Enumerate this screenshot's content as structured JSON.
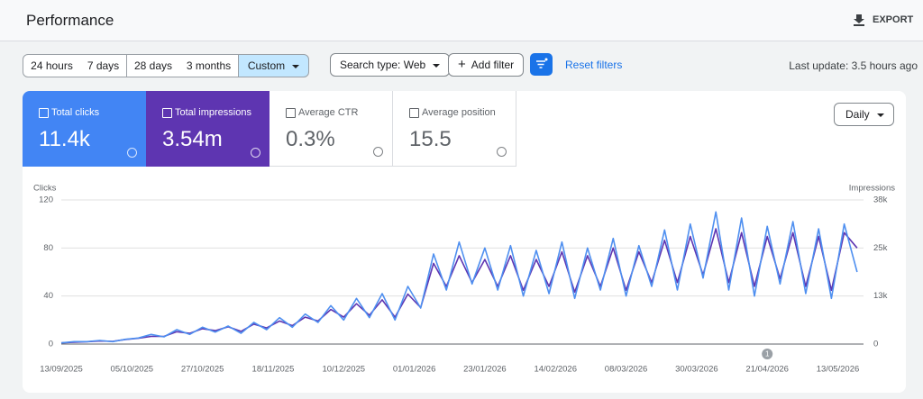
{
  "header": {
    "title": "Performance",
    "export": "EXPORT"
  },
  "filters": {
    "ranges": [
      "24 hours",
      "7 days",
      "28 days",
      "3 months",
      "Custom"
    ],
    "search_type": "Search type: Web",
    "add_filter": "Add filter",
    "reset": "Reset filters",
    "last_update": "Last update: 3.5 hours ago"
  },
  "metrics": [
    {
      "label": "Total clicks",
      "value": "11.4k"
    },
    {
      "label": "Total impressions",
      "value": "3.54m"
    },
    {
      "label": "Average CTR",
      "value": "0.3%"
    },
    {
      "label": "Average position",
      "value": "15.5"
    }
  ],
  "granularity": "Daily",
  "chart_data": {
    "type": "line",
    "y_label": "Clicks",
    "y2_label": "Impressions",
    "x": [
      "13/09/2025",
      "17/09/2025",
      "21/09/2025",
      "25/09/2025",
      "29/09/2025",
      "03/10/2025",
      "07/10/2025",
      "11/10/2025",
      "15/10/2025",
      "19/10/2025",
      "23/10/2025",
      "27/10/2025",
      "31/10/2025",
      "04/11/2025",
      "08/11/2025",
      "12/11/2025",
      "16/11/2025",
      "20/11/2025",
      "24/11/2025",
      "28/11/2025",
      "02/12/2025",
      "06/12/2025",
      "10/12/2025",
      "14/12/2025",
      "18/12/2025",
      "22/12/2025",
      "26/12/2025",
      "30/12/2025",
      "03/01/2026",
      "07/01/2026",
      "11/01/2026",
      "15/01/2026",
      "19/01/2026",
      "23/01/2026",
      "27/01/2026",
      "31/01/2026",
      "04/02/2026",
      "08/02/2026",
      "12/02/2026",
      "16/02/2026",
      "20/02/2026",
      "24/02/2026",
      "28/02/2026",
      "04/03/2026",
      "08/03/2026",
      "12/03/2026",
      "16/03/2026",
      "20/03/2026",
      "24/03/2026",
      "28/03/2026",
      "01/04/2026",
      "05/04/2026",
      "09/04/2026",
      "13/04/2026",
      "17/04/2026",
      "21/04/2026",
      "25/04/2026",
      "29/04/2026",
      "03/05/2026",
      "07/05/2026",
      "11/05/2026",
      "15/05/2026",
      "19/05/2026"
    ],
    "xlim": [
      "13/09/2025",
      "21/05/2026"
    ],
    "xticks": [
      "13/09/2025",
      "05/10/2025",
      "27/10/2025",
      "18/11/2025",
      "10/12/2025",
      "01/01/2026",
      "23/01/2026",
      "14/02/2026",
      "08/03/2026",
      "30/03/2026",
      "21/04/2026",
      "13/05/2026"
    ],
    "ylim": [
      0,
      120
    ],
    "yticks": [
      0,
      40,
      80,
      120
    ],
    "y2lim": [
      0,
      37500
    ],
    "y2ticks": [
      0,
      {
        "value": 12500,
        "label": "13k"
      },
      {
        "value": 25000,
        "label": "25k"
      },
      {
        "value": 37500,
        "label": "38k"
      }
    ],
    "grid": true,
    "series": [
      {
        "name": "Clicks",
        "color": "#4e8ff0",
        "values": [
          1,
          2,
          2,
          3,
          2,
          4,
          5,
          8,
          6,
          12,
          8,
          14,
          10,
          15,
          9,
          18,
          12,
          22,
          14,
          25,
          18,
          32,
          20,
          38,
          22,
          42,
          20,
          48,
          30,
          75,
          45,
          85,
          50,
          80,
          45,
          82,
          40,
          78,
          42,
          85,
          38,
          80,
          45,
          88,
          40,
          82,
          48,
          95,
          45,
          100,
          55,
          110,
          45,
          105,
          40,
          98,
          50,
          102,
          42,
          96,
          38,
          100,
          60
        ]
      },
      {
        "name": "Impressions",
        "color": "#5e35b1",
        "axis": "y2",
        "values": [
          300,
          500,
          600,
          800,
          700,
          1200,
          1500,
          2000,
          2000,
          3200,
          2800,
          4000,
          3500,
          4500,
          3300,
          5200,
          4200,
          6000,
          4800,
          7000,
          6000,
          9000,
          7000,
          10500,
          7500,
          11500,
          7000,
          13000,
          9500,
          21000,
          15000,
          23000,
          16000,
          22000,
          15000,
          23000,
          14000,
          22000,
          15000,
          24000,
          13500,
          23000,
          15000,
          25000,
          14000,
          24000,
          16000,
          27000,
          16000,
          28000,
          18000,
          30000,
          16000,
          29000,
          15000,
          28000,
          17000,
          29000,
          15000,
          28000,
          14000,
          29000,
          25000
        ]
      }
    ],
    "annotations": [
      {
        "x": "21/04/2026",
        "label": "1"
      }
    ]
  }
}
